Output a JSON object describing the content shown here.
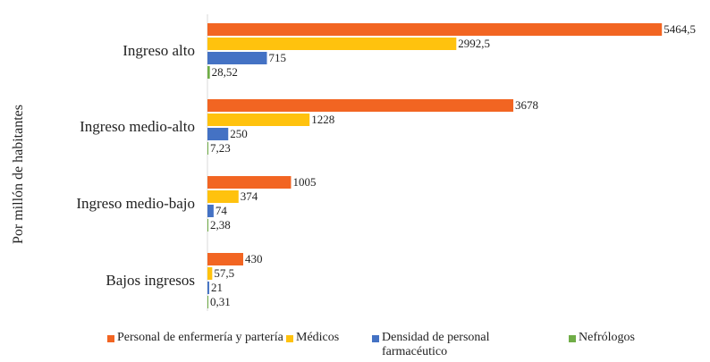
{
  "chart_data": {
    "type": "bar",
    "orientation": "horizontal",
    "ylabel": "Por millón de habitantes",
    "categories": [
      "Ingreso alto",
      "Ingreso medio-alto",
      "Ingreso medio-bajo",
      "Bajos ingresos"
    ],
    "series": [
      {
        "name": "Personal de enfermería y partería",
        "color": "#f26522",
        "values": [
          5464.5,
          3678,
          1005,
          430
        ],
        "labels": [
          "5464,5",
          "3678",
          "1005",
          "430"
        ]
      },
      {
        "name": "Médicos",
        "color": "#ffc20e",
        "values": [
          2992.5,
          1228,
          374,
          57.5
        ],
        "labels": [
          "2992,5",
          "1228",
          "374",
          "57,5"
        ]
      },
      {
        "name": "Densidad de personal farmacéutico",
        "color": "#4472c4",
        "values": [
          715,
          250,
          74,
          21
        ],
        "labels": [
          "715",
          "250",
          "74",
          "21"
        ]
      },
      {
        "name": "Nefrólogos",
        "color": "#70ad47",
        "values": [
          28.52,
          7.23,
          2.38,
          0.31
        ],
        "labels": [
          "28,52",
          "7,23",
          "2,38",
          "0,31"
        ]
      }
    ],
    "legend": "bottom",
    "grid": false
  }
}
